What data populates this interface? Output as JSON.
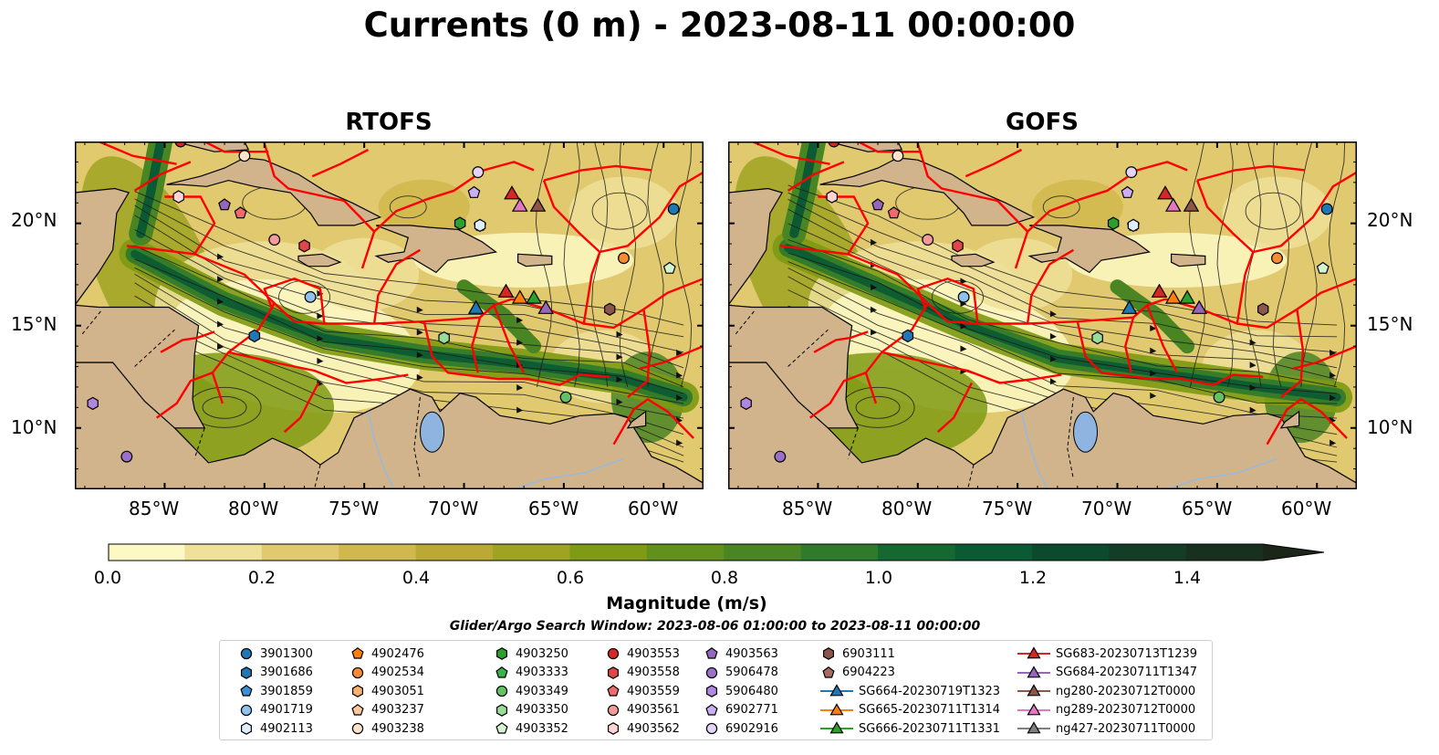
{
  "title": "Currents (0 m) - 2023-08-11 00:00:00",
  "panels": [
    {
      "title": "RTOFS"
    },
    {
      "title": "GOFS"
    }
  ],
  "map": {
    "lon_range": [
      -89.5,
      -58
    ],
    "lat_range": [
      7,
      24
    ],
    "lon_ticks": [
      "85°W",
      "80°W",
      "75°W",
      "70°W",
      "65°W",
      "60°W"
    ],
    "lat_ticks": [
      "20°N",
      "15°N",
      "10°N"
    ],
    "land_color": "#d2b48c",
    "eez_color": "#ff0000",
    "lake_color": "#8fb4e0"
  },
  "colorbar": {
    "label": "Magnitude (m/s)",
    "ticks": [
      "0.0",
      "0.2",
      "0.4",
      "0.6",
      "0.8",
      "1.0",
      "1.2",
      "1.4"
    ],
    "range": [
      0,
      1.5
    ],
    "colors": [
      "#fdf9c4",
      "#efe09a",
      "#e0c96f",
      "#d0b84e",
      "#bba936",
      "#9ea322",
      "#7f9a14",
      "#62901c",
      "#4a8524",
      "#2f7a2b",
      "#156830",
      "#0b5a33",
      "#0c4a2e",
      "#133d26",
      "#18301f",
      "#1b2618"
    ]
  },
  "search_window": "Glider/Argo Search Window: 2023-08-06 01:00:00 to 2023-08-11 00:00:00",
  "legend": [
    {
      "label": "3901300",
      "marker": "circle",
      "color": "#1f77b4"
    },
    {
      "label": "3901686",
      "marker": "hexagon",
      "color": "#1f77b4"
    },
    {
      "label": "3901859",
      "marker": "pentagon",
      "color": "#3b8fd9"
    },
    {
      "label": "4901719",
      "marker": "circle",
      "color": "#8fc3ee"
    },
    {
      "label": "4902113",
      "marker": "hexagon",
      "color": "#deeefc"
    },
    {
      "label": "4902476",
      "marker": "pentagon",
      "color": "#ff7f0e"
    },
    {
      "label": "4902534",
      "marker": "circle",
      "color": "#f78c34"
    },
    {
      "label": "4903051",
      "marker": "hexagon",
      "color": "#fbb06b"
    },
    {
      "label": "4903237",
      "marker": "pentagon",
      "color": "#fcc79c"
    },
    {
      "label": "4903238",
      "marker": "circle",
      "color": "#fde3cc"
    },
    {
      "label": "4903250",
      "marker": "hexagon",
      "color": "#2ca02c"
    },
    {
      "label": "4903333",
      "marker": "pentagon",
      "color": "#3cb04c"
    },
    {
      "label": "4903349",
      "marker": "circle",
      "color": "#62c263"
    },
    {
      "label": "4903350",
      "marker": "hexagon",
      "color": "#98dc98"
    },
    {
      "label": "4903352",
      "marker": "pentagon",
      "color": "#d4f4cf"
    },
    {
      "label": "4903553",
      "marker": "circle",
      "color": "#d62728"
    },
    {
      "label": "4903558",
      "marker": "hexagon",
      "color": "#e0474a"
    },
    {
      "label": "4903559",
      "marker": "pentagon",
      "color": "#ef6b6b"
    },
    {
      "label": "4903561",
      "marker": "circle",
      "color": "#f59a9a"
    },
    {
      "label": "4903562",
      "marker": "hexagon",
      "color": "#fdd5d5"
    },
    {
      "label": "4903563",
      "marker": "pentagon",
      "color": "#9467bd"
    },
    {
      "label": "5906478",
      "marker": "circle",
      "color": "#9c6fc9"
    },
    {
      "label": "5906480",
      "marker": "hexagon",
      "color": "#b087e0"
    },
    {
      "label": "6902771",
      "marker": "pentagon",
      "color": "#cab0f2"
    },
    {
      "label": "6902916",
      "marker": "circle",
      "color": "#e5d4fa"
    },
    {
      "label": "6903111",
      "marker": "hexagon",
      "color": "#8c564b"
    },
    {
      "label": "6904223",
      "marker": "pentagon",
      "color": "#a86b5e"
    },
    {
      "label": "SG664-20230719T1323",
      "marker": "triangle",
      "color": "#1f77b4",
      "line": true
    },
    {
      "label": "SG665-20230711T1314",
      "marker": "triangle",
      "color": "#ff7f0e",
      "line": true
    },
    {
      "label": "SG666-20230711T1331",
      "marker": "triangle",
      "color": "#2ca02c",
      "line": true
    },
    {
      "label": "SG683-20230713T1239",
      "marker": "triangle",
      "color": "#d62728",
      "line": true
    },
    {
      "label": "SG684-20230711T1347",
      "marker": "triangle",
      "color": "#9467bd",
      "line": true
    },
    {
      "label": "ng280-20230712T0000",
      "marker": "triangle",
      "color": "#8c564b",
      "line": true
    },
    {
      "label": "ng289-20230712T0000",
      "marker": "triangle",
      "color": "#e377c2",
      "line": true
    },
    {
      "label": "ng427-20230711T0000",
      "marker": "triangle",
      "color": "#7f7f7f",
      "line": true
    }
  ],
  "platforms": [
    {
      "id": "3901300",
      "lon": -59.5,
      "lat": 20.7
    },
    {
      "id": "3901686",
      "lon": -80.5,
      "lat": 14.5
    },
    {
      "id": "3901859",
      "lon": -69.2,
      "lat": 19.9
    },
    {
      "id": "4901719",
      "lon": -77.7,
      "lat": 16.4
    },
    {
      "id": "4902113",
      "lon": -69.2,
      "lat": 19.9
    },
    {
      "id": "4902534",
      "lon": -62.0,
      "lat": 18.3
    },
    {
      "id": "4903238",
      "lon": -81.0,
      "lat": 23.3
    },
    {
      "id": "4903250",
      "lon": -70.2,
      "lat": 20.0
    },
    {
      "id": "4903349",
      "lon": -64.9,
      "lat": 11.5
    },
    {
      "id": "4903350",
      "lon": -71.0,
      "lat": 14.4
    },
    {
      "id": "4903352",
      "lon": -59.7,
      "lat": 17.8
    },
    {
      "id": "4903553",
      "lon": -84.2,
      "lat": 24.0
    },
    {
      "id": "4903558",
      "lon": -78.0,
      "lat": 18.9
    },
    {
      "id": "4903559",
      "lon": -81.2,
      "lat": 20.5
    },
    {
      "id": "4903561",
      "lon": -79.5,
      "lat": 19.2
    },
    {
      "id": "4903562",
      "lon": -84.3,
      "lat": 21.3
    },
    {
      "id": "4903563",
      "lon": -82.0,
      "lat": 20.9
    },
    {
      "id": "5906478",
      "lon": -86.9,
      "lat": 8.6
    },
    {
      "id": "5906480",
      "lon": -88.6,
      "lat": 11.2
    },
    {
      "id": "6902771",
      "lon": -69.5,
      "lat": 21.5
    },
    {
      "id": "6902916",
      "lon": -69.3,
      "lat": 22.5
    },
    {
      "id": "6903111",
      "lon": -62.7,
      "lat": 15.8
    },
    {
      "id": "SG664-20230719T1323",
      "lon": -69.4,
      "lat": 15.8
    },
    {
      "id": "SG665-20230711T1314",
      "lon": -67.2,
      "lat": 16.3
    },
    {
      "id": "SG666-20230711T1331",
      "lon": -66.5,
      "lat": 16.3
    },
    {
      "id": "SG683-20230713T1239",
      "lon": -67.9,
      "lat": 16.6
    },
    {
      "id": "SG684-20230711T1347",
      "lon": -65.9,
      "lat": 15.8
    },
    {
      "id": "SG683-20230713T1239",
      "lon": -67.6,
      "lat": 21.4
    },
    {
      "id": "ng289-20230712T0000",
      "lon": -67.2,
      "lat": 20.8
    },
    {
      "id": "ng280-20230712T0000",
      "lon": -66.3,
      "lat": 20.8
    }
  ]
}
